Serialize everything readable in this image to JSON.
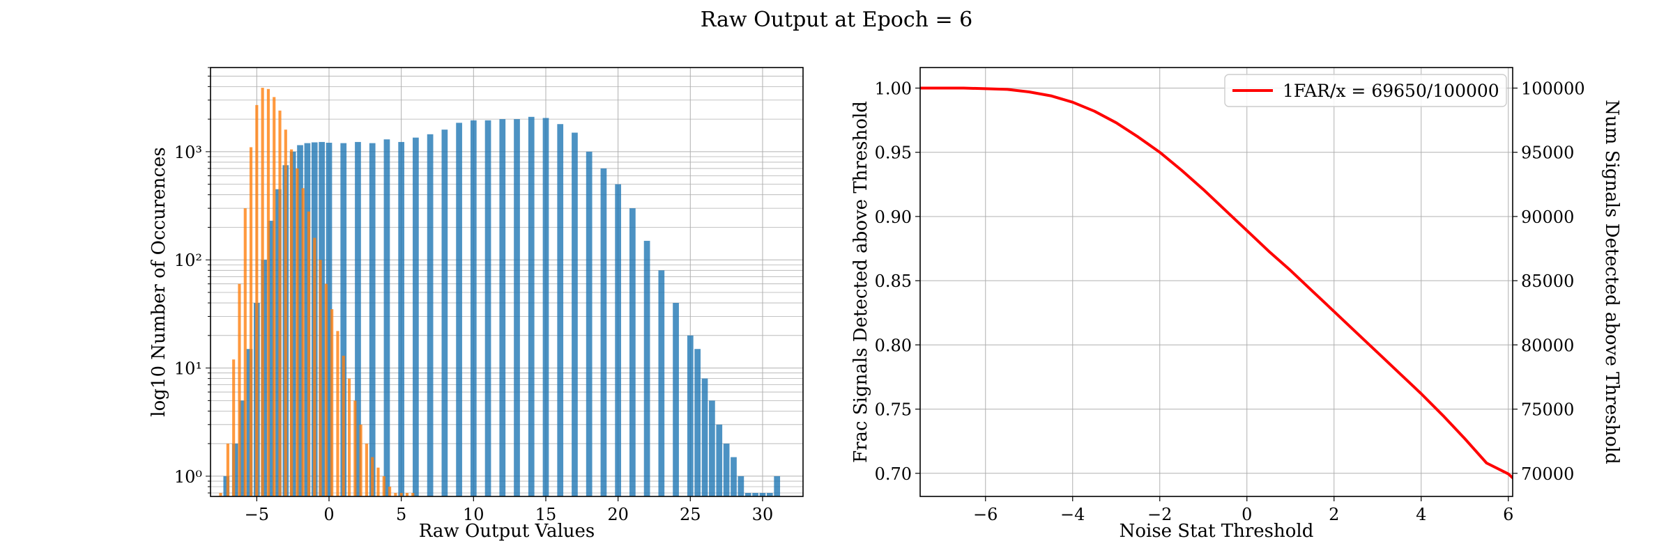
{
  "figure": {
    "title": "Raw Output at Epoch = 6"
  },
  "chart_data": [
    {
      "type": "bar",
      "subtype": "histogram",
      "title": "",
      "xlabel": "Raw Output Values",
      "ylabel": "log10 Number of Occurences",
      "xlim": [
        -8.2,
        32.8
      ],
      "ylim": [
        0.65,
        6000
      ],
      "y_scale": "log",
      "grid": true,
      "x_ticks": [
        -5,
        0,
        5,
        10,
        15,
        20,
        25,
        30
      ],
      "y_ticks": [
        {
          "value": 1,
          "label": "10⁰"
        },
        {
          "value": 10,
          "label": "10¹"
        },
        {
          "value": 100,
          "label": "10²"
        },
        {
          "value": 1000,
          "label": "10³"
        }
      ],
      "series": [
        {
          "color": "#1f77b4",
          "opacity": 0.8,
          "bin_width": 0.42,
          "x": [
            -7.1,
            -6.5,
            -6,
            -5.5,
            -5,
            -4.5,
            -4,
            -3.5,
            -3,
            -2.5,
            -2,
            -1.5,
            -1,
            -0.5,
            0,
            1,
            2,
            3,
            4,
            5,
            6,
            7,
            8,
            9,
            10,
            11,
            12,
            13,
            14,
            15,
            16,
            17,
            18,
            19,
            20,
            21,
            22,
            23,
            24,
            25,
            25.5,
            26,
            26.5,
            27,
            27.5,
            28,
            28.5,
            29,
            29.5,
            30,
            30.5,
            31
          ],
          "values": [
            1,
            2,
            5,
            15,
            40,
            100,
            230,
            450,
            750,
            1000,
            1150,
            1200,
            1220,
            1230,
            1210,
            1200,
            1230,
            1200,
            1300,
            1230,
            1350,
            1450,
            1600,
            1850,
            1950,
            1950,
            2000,
            2000,
            2100,
            2050,
            1800,
            1500,
            1000,
            700,
            500,
            300,
            150,
            80,
            40,
            20,
            15,
            8,
            5,
            3,
            2,
            1.5,
            1,
            0.7,
            0.7,
            0.7,
            0.7,
            1
          ]
        },
        {
          "color": "#ff7f0e",
          "opacity": 0.8,
          "bin_width": 0.2,
          "x": [
            -7.5,
            -7,
            -6.6,
            -6.2,
            -5.8,
            -5.4,
            -5,
            -4.6,
            -4.2,
            -3.8,
            -3.4,
            -3,
            -2.6,
            -2.2,
            -1.8,
            -1.4,
            -1,
            -0.6,
            -0.2,
            0.2,
            0.6,
            1,
            1.4,
            1.8,
            2.2,
            2.6,
            3,
            3.4,
            3.8,
            4.2,
            4.6,
            5,
            5.4,
            5.8
          ],
          "values": [
            0.7,
            2,
            12,
            60,
            300,
            1100,
            2700,
            3900,
            3800,
            3200,
            2400,
            1600,
            1050,
            700,
            460,
            280,
            160,
            100,
            60,
            35,
            22,
            13,
            8,
            5,
            3,
            2,
            1.5,
            1.2,
            1,
            0.8,
            0.7,
            0.7,
            0.7,
            0.7
          ]
        }
      ]
    },
    {
      "type": "line",
      "title": "",
      "xlabel": "Noise Stat Threshold",
      "ylabel": "Frac Signals Detected above Threshold",
      "ylabel_right": "Num Signals Detected above Threshold",
      "xlim": [
        -7.5,
        6.1
      ],
      "ylim": [
        0.682,
        1.016
      ],
      "ylim_right": [
        68200,
        101600
      ],
      "grid": true,
      "legend_position": "upper right",
      "x_ticks": [
        -6,
        -4,
        -2,
        0,
        2,
        4,
        6
      ],
      "y_ticks": [
        "0.70",
        "0.75",
        "0.80",
        "0.85",
        "0.90",
        "0.95",
        "1.00"
      ],
      "y_ticks_right": [
        "70000",
        "75000",
        "80000",
        "85000",
        "90000",
        "95000",
        "100000"
      ],
      "series": [
        {
          "name": "1FAR/x = 69650/100000",
          "color": "#ff0000",
          "x": [
            -7.5,
            -6.5,
            -6,
            -5.5,
            -5,
            -4.5,
            -4,
            -3.5,
            -3,
            -2.5,
            -2,
            -1.5,
            -1,
            -0.5,
            0,
            0.5,
            1,
            1.5,
            2,
            2.5,
            3,
            3.5,
            4,
            4.5,
            5,
            5.5,
            6,
            6.1
          ],
          "y": [
            1.0,
            1.0,
            0.9995,
            0.999,
            0.997,
            0.994,
            0.989,
            0.982,
            0.973,
            0.962,
            0.95,
            0.936,
            0.921,
            0.905,
            0.889,
            0.873,
            0.858,
            0.842,
            0.826,
            0.81,
            0.794,
            0.778,
            0.762,
            0.745,
            0.727,
            0.708,
            0.6995,
            0.6965
          ]
        }
      ]
    }
  ]
}
